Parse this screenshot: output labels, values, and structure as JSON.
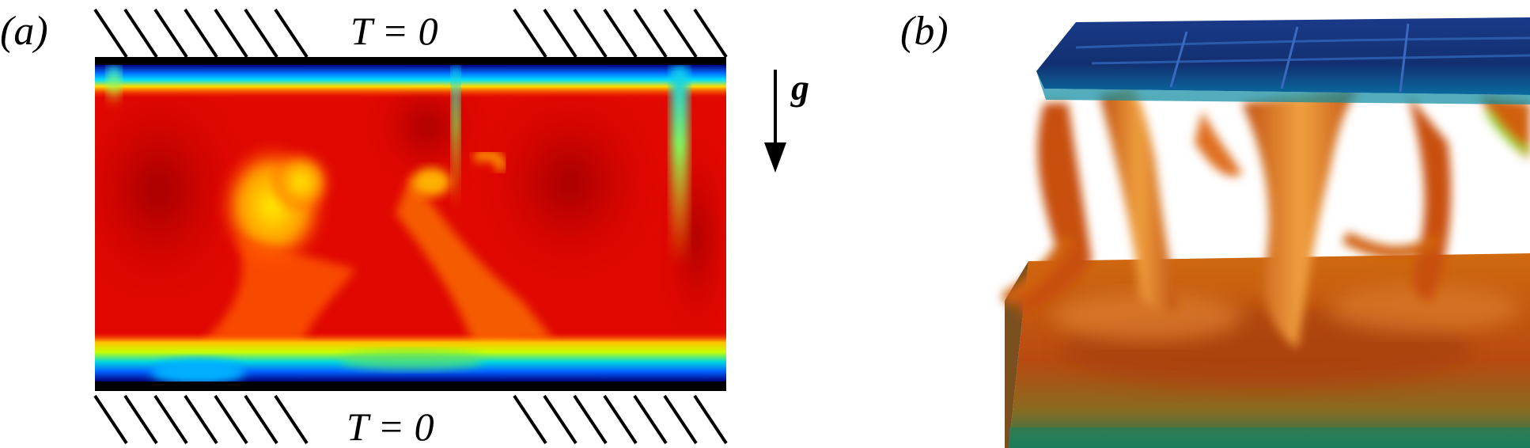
{
  "panel_a": {
    "label": "(a)",
    "top_boundary_label": "T = 0",
    "bottom_boundary_label": "T = 0",
    "gravity_label": "g"
  },
  "panel_b": {
    "label": "(b)"
  },
  "colors": {
    "hot": "#d40000",
    "warm": "#ff4a00",
    "yellow": "#ffe000",
    "cold": "#0028b0",
    "plate": "#000000"
  }
}
